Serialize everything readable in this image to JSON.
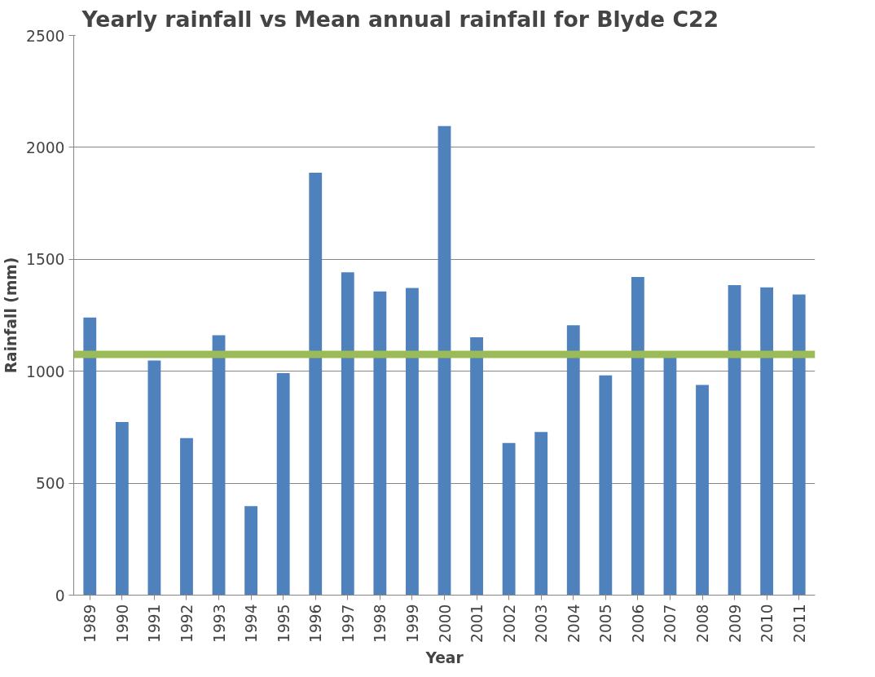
{
  "chart_data": {
    "type": "bar",
    "title": "Yearly rainfall vs Mean annual rainfall for Blyde C22",
    "xlabel": "Year",
    "ylabel": "Rainfall (mm)",
    "categories": [
      "1989",
      "1990",
      "1991",
      "1992",
      "1993",
      "1994",
      "1995",
      "1996",
      "1997",
      "1998",
      "1999",
      "2000",
      "2001",
      "2002",
      "2003",
      "2004",
      "2005",
      "2006",
      "2007",
      "2008",
      "2009",
      "2010",
      "2011"
    ],
    "values": [
      1240,
      773,
      1048,
      701,
      1161,
      398,
      992,
      1887,
      1442,
      1356,
      1372,
      2095,
      1152,
      680,
      729,
      1205,
      982,
      1421,
      1061,
      939,
      1385,
      1375,
      1343
    ],
    "color": "#4f81bd",
    "ylim": [
      0,
      2500
    ],
    "yticks": [
      0,
      500,
      1000,
      1500,
      2000,
      2500
    ],
    "grid": "y",
    "ref_lines": [
      {
        "axis": "y",
        "value": 1075,
        "label": null,
        "color": "#9bbb59"
      }
    ]
  }
}
